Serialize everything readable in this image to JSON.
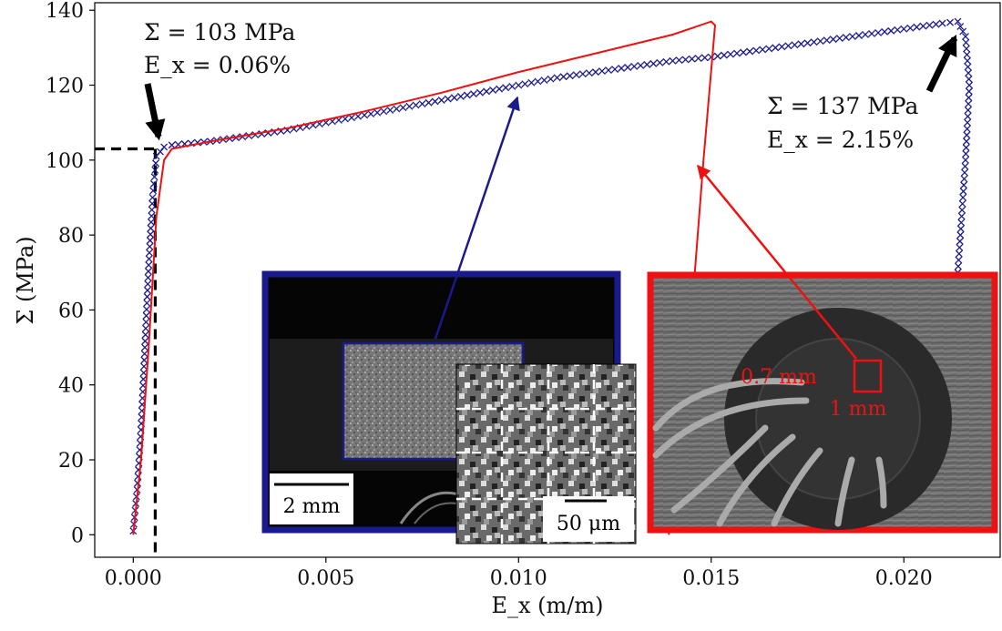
{
  "chart_data": {
    "type": "scatter",
    "xlabel": "E_x (m/m)",
    "ylabel": "Σ (MPa)",
    "xlim": [
      -0.001,
      0.0225
    ],
    "ylim": [
      -6,
      142
    ],
    "xticks": [
      0.0,
      0.005,
      0.01,
      0.015,
      0.02
    ],
    "xtick_labels": [
      "0.000",
      "0.005",
      "0.010",
      "0.015",
      "0.020"
    ],
    "yticks": [
      0,
      20,
      40,
      60,
      80,
      100,
      120,
      140
    ],
    "ytick_labels": [
      "0",
      "20",
      "40",
      "60",
      "80",
      "100",
      "120",
      "140"
    ],
    "grid": false,
    "series": [
      {
        "marker": "x",
        "color": "#1a1a8c",
        "style": "markers",
        "x": [
          0.0,
          0.0001,
          0.0002,
          0.0003,
          0.0004,
          0.0005,
          0.0006,
          0.0008,
          0.001,
          0.002,
          0.003,
          0.004,
          0.005,
          0.006,
          0.007,
          0.008,
          0.009,
          0.01,
          0.011,
          0.012,
          0.013,
          0.014,
          0.015,
          0.016,
          0.017,
          0.018,
          0.019,
          0.02,
          0.021,
          0.0214,
          0.0216,
          0.0217,
          0.0216,
          0.0215,
          0.0214,
          0.0213,
          0.0212,
          0.0211,
          0.021,
          0.0209
        ],
        "y": [
          1,
          12,
          28,
          50,
          72,
          90,
          101,
          103.5,
          104,
          105,
          106.5,
          108,
          110,
          112,
          114,
          116,
          118,
          120,
          122,
          123.5,
          125,
          126.5,
          127.5,
          129,
          130.5,
          132,
          133.5,
          135,
          136.5,
          137,
          133,
          120,
          100,
          85,
          70,
          55,
          40,
          25,
          12,
          4
        ]
      },
      {
        "color": "#ee1111",
        "style": "line",
        "x": [
          0.0,
          0.0002,
          0.0004,
          0.0006,
          0.0008,
          0.001,
          0.002,
          0.004,
          0.006,
          0.008,
          0.01,
          0.012,
          0.014,
          0.015,
          0.0151,
          0.0148,
          0.0145,
          0.0142,
          0.0139
        ],
        "y": [
          0,
          20,
          50,
          85,
          100,
          103,
          105,
          108.5,
          113,
          118,
          123.5,
          128.5,
          133.5,
          137,
          136,
          100,
          60,
          20,
          0
        ]
      }
    ],
    "reference_lines": [
      {
        "style": "dashed",
        "color": "#000000",
        "from": [
          -0.001,
          103
        ],
        "to": [
          0.00057,
          103
        ]
      },
      {
        "style": "dashed",
        "color": "#000000",
        "from": [
          0.00057,
          103
        ],
        "to": [
          0.00057,
          -6
        ]
      }
    ],
    "annotations": [
      {
        "line1": "Σ = 103 MPa",
        "line2": "E_x = 0.06%",
        "point_at": [
          0.0005,
          103
        ]
      },
      {
        "line1": "Σ = 137 MPa",
        "line2": "E_x = 2.15%",
        "point_at": [
          0.0215,
          137
        ]
      }
    ],
    "insets": [
      {
        "border_color": "#1a1a8c",
        "description": "speckle specimen",
        "scale_bar": "2 mm",
        "connector_to": [
          0.0095,
          121
        ]
      },
      {
        "border_color": "#1a1a8c",
        "description": "zoomed speckle with subset grid",
        "scale_bar": "50 μm"
      },
      {
        "border_color": "#ee1111",
        "description": "strain gauge rosette",
        "labels": [
          "0.7 mm",
          "1 mm"
        ],
        "connector_to": [
          0.014,
          100
        ]
      }
    ]
  }
}
